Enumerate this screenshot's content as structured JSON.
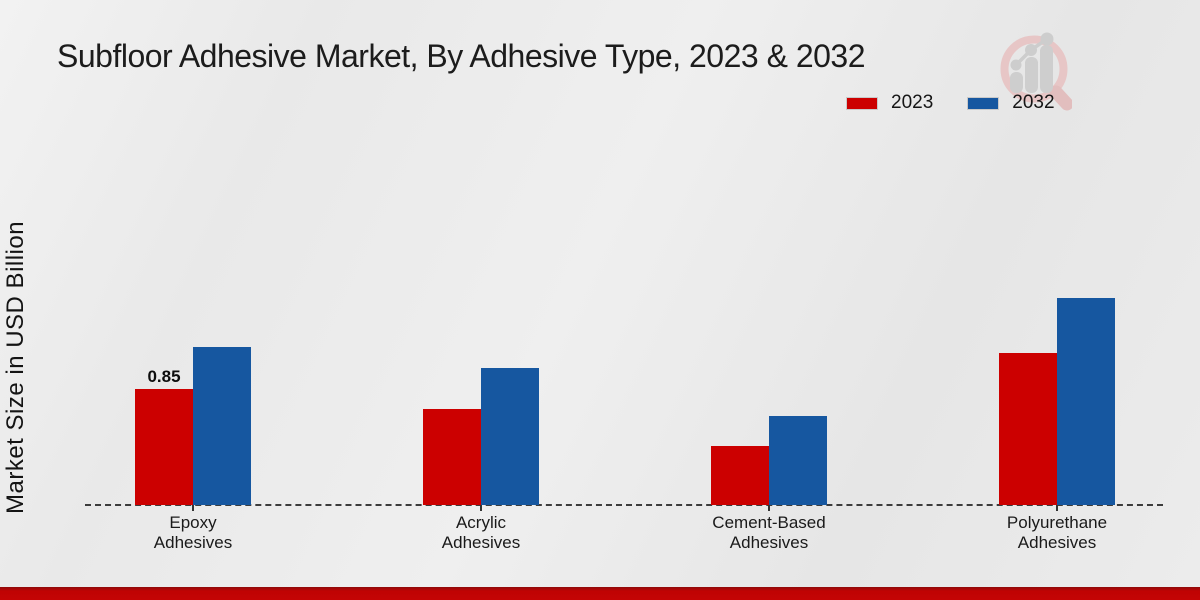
{
  "chart_data": {
    "type": "bar",
    "title": "Subfloor Adhesive Market, By Adhesive Type, 2023 & 2032",
    "xlabel": "",
    "ylabel": "Market Size in USD Billion",
    "categories": [
      "Epoxy Adhesives",
      "Acrylic Adhesives",
      "Cement-Based Adhesives",
      "Polyurethane Adhesives"
    ],
    "series": [
      {
        "name": "2023",
        "color": "#cc0000",
        "values": [
          0.85,
          0.7,
          0.43,
          1.11
        ]
      },
      {
        "name": "2032",
        "color": "#1657a0",
        "values": [
          1.16,
          1.0,
          0.65,
          1.52
        ]
      }
    ],
    "data_labels": [
      {
        "series": "2023",
        "category": "Epoxy Adhesives",
        "text": "0.85"
      }
    ],
    "ylim": [
      0,
      1.6
    ],
    "grid": false,
    "legend_position": "upper right",
    "x_axis_style": "dashed"
  },
  "footer": {
    "accent_color": "#c40404"
  },
  "watermark": {
    "icon": "magnifier-bar-chart-logo"
  }
}
